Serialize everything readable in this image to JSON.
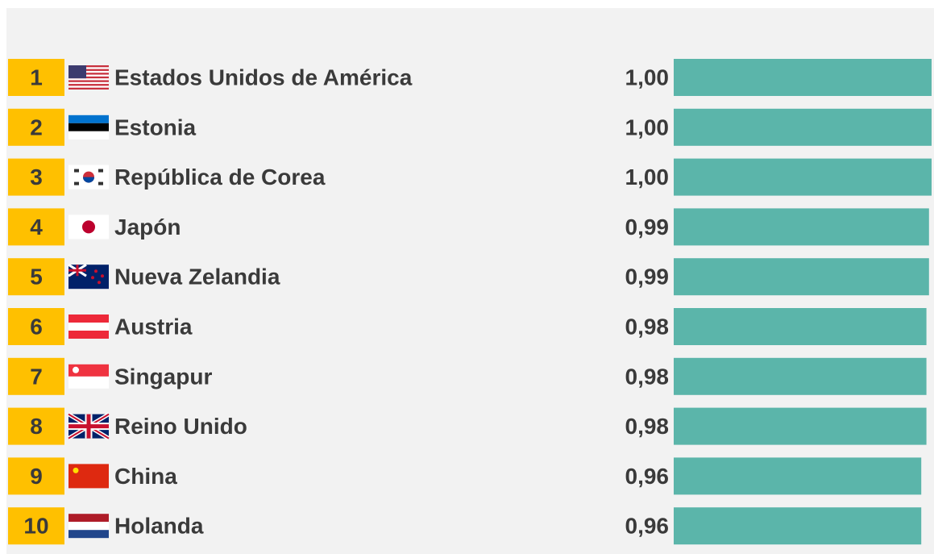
{
  "chart_data": {
    "type": "bar",
    "orientation": "horizontal",
    "ranks": [
      1,
      2,
      3,
      4,
      5,
      6,
      7,
      8,
      9,
      10
    ],
    "categories": [
      "Estados Unidos de América",
      "Estonia",
      "República de Corea",
      "Japón",
      "Nueva Zelandia",
      "Austria",
      "Singapur",
      "Reino Unido",
      "China",
      "Holanda"
    ],
    "values": [
      1.0,
      1.0,
      1.0,
      0.99,
      0.99,
      0.98,
      0.98,
      0.98,
      0.96,
      0.96
    ],
    "value_labels": [
      "1,00",
      "1,00",
      "1,00",
      "0,99",
      "0,99",
      "0,98",
      "0,98",
      "0,98",
      "0,96",
      "0,96"
    ],
    "color": "#5bb5aa",
    "rank_color": "#ffc000",
    "xlim": [
      0,
      1
    ]
  }
}
